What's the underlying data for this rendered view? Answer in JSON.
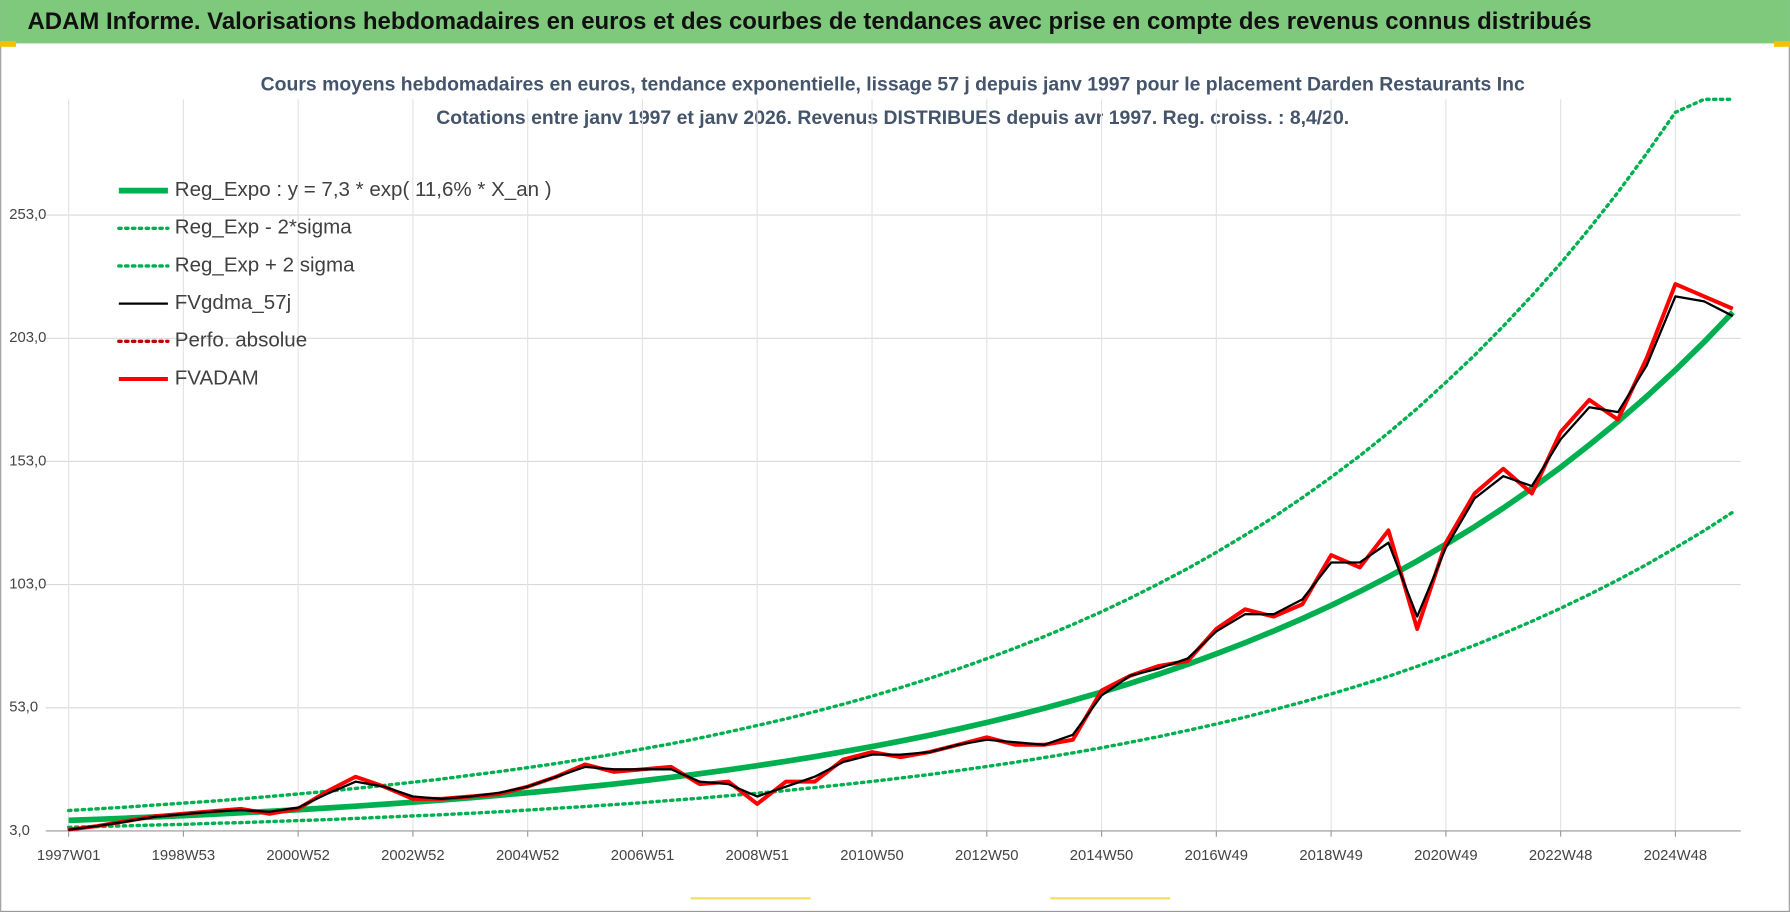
{
  "chart_data": {
    "type": "line",
    "title": "ADAM Informe. Valorisations hebdomadaires en euros et des courbes de tendances avec prise en compte des revenus connus distribués",
    "subtitle": [
      "Cours moyens hebdomadaires en euros, tendance exponentielle, lissage 57 j depuis janv 1997  pour le  placement Darden Restaurants Inc",
      "Cotations entre janv 1997 et janv 2026. Revenus DISTRIBUES depuis avr 1997. Reg. croiss. : 8,4/20."
    ],
    "categories": [
      "1997W01",
      null,
      null,
      null,
      "1998W53",
      null,
      null,
      null,
      "2000W52",
      null,
      null,
      null,
      "2002W52",
      null,
      null,
      null,
      "2004W52",
      null,
      null,
      null,
      "2006W51",
      null,
      null,
      null,
      "2008W51",
      null,
      null,
      null,
      "2010W50",
      null,
      null,
      null,
      "2012W50",
      null,
      null,
      null,
      "2014W50",
      null,
      null,
      null,
      "2016W49",
      null,
      null,
      null,
      "2018W49",
      null,
      null,
      null,
      "2020W49",
      null,
      null,
      null,
      "2022W48",
      null,
      null,
      null,
      "2024W48",
      null,
      null
    ],
    "ylim": [
      3,
      300
    ],
    "yticks": [
      {
        "value": 3,
        "label": "3,0"
      },
      {
        "value": 53,
        "label": "53,0"
      },
      {
        "value": 103,
        "label": "103,0"
      },
      {
        "value": 153,
        "label": "153,0"
      },
      {
        "value": 203,
        "label": "203,0"
      },
      {
        "value": 253,
        "label": "253,0"
      }
    ],
    "grid": true,
    "legend": "upper left",
    "series": [
      {
        "name": "Reg_Expo : y = 7,3 * exp( 11,6% *  X_an )",
        "color": "#00b050",
        "line_style": "solid",
        "values": [
          7.3,
          7.74,
          8.2,
          8.69,
          9.21,
          9.77,
          10.35,
          10.97,
          11.63,
          12.33,
          13.07,
          13.85,
          14.68,
          15.56,
          16.49,
          17.48,
          18.53,
          19.64,
          20.82,
          22.06,
          23.39,
          24.79,
          26.27,
          27.85,
          29.52,
          31.28,
          33.16,
          35.15,
          37.25,
          39.49,
          41.85,
          44.36,
          47.02,
          49.84,
          52.83,
          55.99,
          59.35,
          62.91,
          66.68,
          70.67,
          74.91,
          79.4,
          84.16,
          89.2,
          94.55,
          100.2,
          106.2,
          112.6,
          119.4,
          126.5,
          134.1,
          142.1,
          150.6,
          159.7,
          169.2,
          179.4,
          190.1,
          201.5,
          213.6
        ]
      },
      {
        "name": "Reg_Exp - 2*sigma",
        "color": "#00b050",
        "line_style": "dotted",
        "values": [
          4.5,
          4.8,
          5.1,
          5.4,
          5.7,
          6.1,
          6.4,
          6.8,
          7.2,
          7.6,
          8.1,
          8.6,
          9.1,
          9.6,
          10.2,
          10.8,
          11.5,
          12.2,
          12.9,
          13.7,
          14.5,
          15.4,
          16.3,
          17.3,
          18.3,
          19.4,
          20.6,
          21.8,
          23.1,
          24.5,
          25.9,
          27.5,
          29.2,
          30.9,
          32.8,
          34.7,
          36.8,
          39.0,
          41.3,
          43.8,
          46.4,
          49.2,
          52.2,
          55.3,
          58.6,
          62.1,
          65.8,
          69.8,
          74.0,
          78.4,
          83.1,
          88.1,
          93.4,
          99.0,
          104.9,
          111.2,
          117.9,
          124.9,
          132.4
        ]
      },
      {
        "name": "Reg_Exp + 2 sigma",
        "color": "#00b050",
        "line_style": "dotted",
        "values": [
          11.3,
          12.0,
          12.7,
          13.5,
          14.3,
          15.1,
          16.0,
          17.0,
          18.0,
          19.1,
          20.3,
          21.5,
          22.8,
          24.1,
          25.6,
          27.1,
          28.7,
          30.4,
          32.3,
          34.2,
          36.3,
          38.4,
          40.7,
          43.2,
          45.8,
          48.5,
          51.4,
          54.5,
          57.7,
          61.2,
          64.9,
          68.8,
          72.9,
          77.3,
          81.9,
          86.8,
          92.0,
          97.5,
          103.4,
          109.5,
          116.1,
          123.1,
          130.4,
          138.3,
          146.6,
          155.3,
          164.6,
          174.5,
          185.1,
          196.1,
          207.9,
          220.3,
          233.4,
          247.5,
          262.3,
          278.1,
          294.7,
          300,
          300
        ]
      },
      {
        "name": "FVgdma_57j",
        "color": "#000000",
        "line_style": "solid",
        "values": [
          3.5,
          5,
          6.8,
          8.7,
          9.8,
          10.8,
          11.5,
          10.8,
          12.5,
          18,
          23,
          21,
          17,
          16,
          17,
          18.5,
          21,
          25,
          29,
          28,
          28,
          28,
          23,
          22,
          17,
          21,
          25,
          31,
          34,
          34,
          35,
          38,
          40,
          39,
          38,
          42,
          58,
          66,
          69,
          73,
          84,
          91,
          91,
          97,
          112,
          112,
          120,
          90,
          118,
          138,
          147,
          143,
          162,
          175,
          173,
          192,
          220,
          218,
          212
        ]
      },
      {
        "name": "Perfo. absolue",
        "color": "#c00000",
        "line_style": "dotted",
        "values": [
          3.5,
          5,
          7,
          9,
          10,
          11,
          12,
          10,
          12,
          19,
          25,
          21,
          16,
          16,
          17,
          18,
          21,
          25,
          30,
          27,
          28,
          29,
          22,
          23,
          14,
          23,
          23,
          32,
          35,
          33,
          35,
          38,
          41,
          38,
          38,
          40,
          60,
          66,
          70,
          72,
          85,
          93,
          90,
          95,
          115,
          110,
          125,
          85,
          120,
          140,
          150,
          140,
          165,
          178,
          170,
          195,
          225,
          220,
          215
        ]
      },
      {
        "name": "FVADAM",
        "color": "#ff0000",
        "line_style": "solid",
        "values": [
          3.5,
          5,
          7,
          9,
          10,
          11,
          12,
          10,
          12,
          19,
          25,
          21,
          16,
          16,
          17,
          18,
          21,
          25,
          30,
          27,
          28,
          29,
          22,
          23,
          14,
          23,
          23,
          32,
          35,
          33,
          35,
          38,
          41,
          38,
          38,
          40,
          60,
          66,
          70,
          72,
          85,
          93,
          90,
          95,
          115,
          110,
          125,
          85,
          120,
          140,
          150,
          140,
          165,
          178,
          170,
          195,
          225,
          220,
          215
        ]
      }
    ]
  }
}
